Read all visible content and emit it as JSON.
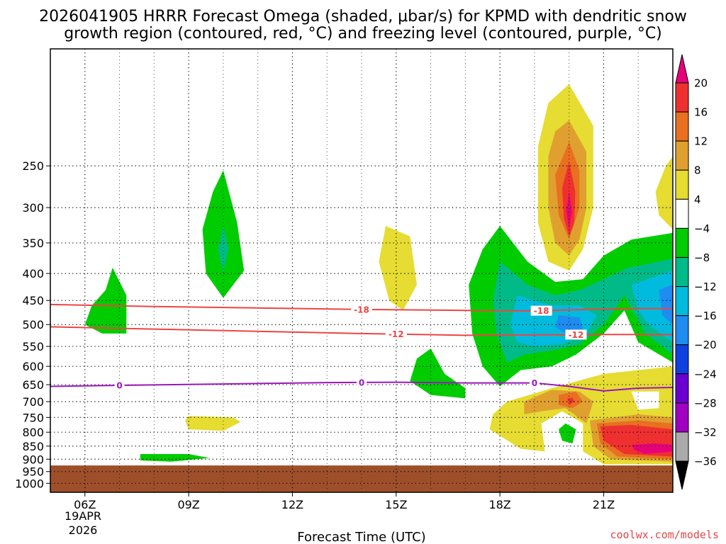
{
  "chart_data": {
    "type": "heatmap",
    "title_line1": "2026041905 HRRR Forecast Omega (shaded, μbar/s) for KPMD with dendritic snow",
    "title_line2": "growth region (contoured, red, °C) and freezing level (contoured, purple, °C)",
    "xlabel": "Forecast Time (UTC)",
    "x_ticks": [
      {
        "hour": 6,
        "label": "06Z"
      },
      {
        "hour": 9,
        "label": "09Z"
      },
      {
        "hour": 12,
        "label": "12Z"
      },
      {
        "hour": 15,
        "label": "15Z"
      },
      {
        "hour": 18,
        "label": "18Z"
      },
      {
        "hour": 21,
        "label": "21Z"
      }
    ],
    "date_label": "19APR",
    "year_label": "2026",
    "x_range_hours": [
      5,
      23
    ],
    "y_ticks": [
      250,
      300,
      350,
      400,
      450,
      500,
      550,
      600,
      650,
      700,
      750,
      800,
      850,
      900,
      950,
      1000
    ],
    "y_range_hpa": [
      150,
      1040
    ],
    "ground_pressure_hpa": 925,
    "ground_color": "#9e4f2a",
    "contours": [
      {
        "name": "-18C",
        "label": "-18",
        "color": "#ee4444",
        "points": [
          [
            5,
            458
          ],
          [
            8,
            462
          ],
          [
            11,
            465
          ],
          [
            14,
            468
          ],
          [
            17,
            470
          ],
          [
            19,
            471
          ],
          [
            20.5,
            468
          ],
          [
            22,
            466
          ],
          [
            23,
            466
          ]
        ],
        "label_hours": [
          14,
          19.2
        ]
      },
      {
        "name": "-12C",
        "label": "-12",
        "color": "#ee4444",
        "points": [
          [
            5,
            505
          ],
          [
            8,
            510
          ],
          [
            11,
            515
          ],
          [
            14,
            520
          ],
          [
            17,
            524
          ],
          [
            19,
            523
          ],
          [
            21,
            522
          ],
          [
            23,
            522
          ]
        ],
        "label_hours": [
          15,
          20.2
        ]
      },
      {
        "name": "0C freezing level",
        "label": "0",
        "color": "#9a16c0",
        "points": [
          [
            5,
            655
          ],
          [
            7,
            652
          ],
          [
            10,
            648
          ],
          [
            13,
            644
          ],
          [
            15,
            643
          ],
          [
            17,
            645
          ],
          [
            19,
            645
          ],
          [
            20,
            655
          ],
          [
            21,
            668
          ],
          [
            22,
            660
          ],
          [
            23,
            658
          ]
        ],
        "label_hours": [
          7,
          14,
          19
        ]
      }
    ],
    "shaded_regions": [
      {
        "color": "#00cc00",
        "label": "-8 to -4",
        "poly": [
          [
            10,
            255
          ],
          [
            10.4,
            320
          ],
          [
            10.6,
            395
          ],
          [
            10,
            445
          ],
          [
            9.5,
            400
          ],
          [
            9.4,
            330
          ],
          [
            9.7,
            280
          ]
        ]
      },
      {
        "color": "#00bb88",
        "label": "-12 to -8",
        "poly": [
          [
            10,
            325
          ],
          [
            10.15,
            360
          ],
          [
            10,
            398
          ],
          [
            9.85,
            360
          ]
        ]
      },
      {
        "color": "#00cc00",
        "label": "-8 to -4",
        "poly": [
          [
            6.8,
            390
          ],
          [
            7.2,
            440
          ],
          [
            7.2,
            520
          ],
          [
            6.5,
            520
          ],
          [
            6,
            500
          ],
          [
            6.2,
            460
          ],
          [
            6.6,
            430
          ]
        ]
      },
      {
        "color": "#00cc00",
        "label": "-8 to -4",
        "poly": [
          [
            16,
            555
          ],
          [
            16.4,
            620
          ],
          [
            17,
            660
          ],
          [
            17,
            690
          ],
          [
            16,
            680
          ],
          [
            15.4,
            640
          ],
          [
            15.6,
            580
          ]
        ]
      },
      {
        "color": "#00cc00",
        "label": "-8 to -4",
        "poly": [
          [
            7.6,
            880
          ],
          [
            9,
            880
          ],
          [
            9.6,
            895
          ],
          [
            8.5,
            910
          ],
          [
            7.6,
            905
          ]
        ]
      },
      {
        "color": "#00cc00",
        "label": "-8 to -4",
        "poly": [
          [
            19.9,
            770
          ],
          [
            20.2,
            790
          ],
          [
            20.1,
            840
          ],
          [
            19.8,
            830
          ],
          [
            19.7,
            790
          ]
        ]
      },
      {
        "color": "#e6dc32",
        "label": "4 to 8",
        "poly": [
          [
            14.7,
            325
          ],
          [
            15.4,
            340
          ],
          [
            15.6,
            420
          ],
          [
            15.2,
            470
          ],
          [
            14.8,
            450
          ],
          [
            14.5,
            380
          ]
        ]
      },
      {
        "color": "#e6dc32",
        "label": "4 to 8",
        "poly": [
          [
            9,
            745
          ],
          [
            10.3,
            750
          ],
          [
            10.5,
            765
          ],
          [
            10,
            795
          ],
          [
            9,
            790
          ],
          [
            8.9,
            760
          ]
        ]
      },
      {
        "color": "#00cc00",
        "label": "-8 to -4",
        "poly": [
          [
            18,
            325
          ],
          [
            18.8,
            380
          ],
          [
            19.6,
            415
          ],
          [
            20.4,
            410
          ],
          [
            21,
            370
          ],
          [
            21.8,
            345
          ],
          [
            23,
            335
          ],
          [
            23,
            590
          ],
          [
            22,
            540
          ],
          [
            21.6,
            470
          ],
          [
            21,
            520
          ],
          [
            20.2,
            570
          ],
          [
            19.5,
            600
          ],
          [
            18.6,
            610
          ],
          [
            18,
            655
          ],
          [
            17.5,
            600
          ],
          [
            17.2,
            520
          ],
          [
            17.1,
            420
          ],
          [
            17.5,
            360
          ]
        ]
      },
      {
        "color": "#00bb88",
        "label": "-12 to -8",
        "poly": [
          [
            18,
            380
          ],
          [
            18.8,
            420
          ],
          [
            19.6,
            440
          ],
          [
            20.3,
            430
          ],
          [
            21,
            410
          ],
          [
            21.7,
            390
          ],
          [
            23,
            375
          ],
          [
            23,
            570
          ],
          [
            22.2,
            520
          ],
          [
            21.6,
            440
          ],
          [
            21,
            500
          ],
          [
            20.3,
            545
          ],
          [
            19.5,
            560
          ],
          [
            18.7,
            570
          ],
          [
            18.2,
            590
          ],
          [
            17.9,
            520
          ],
          [
            17.8,
            450
          ]
        ]
      },
      {
        "color": "#00bbdd",
        "label": "-16 to -12",
        "poly": [
          [
            18.5,
            440
          ],
          [
            19.5,
            460
          ],
          [
            20.3,
            460
          ],
          [
            20.8,
            480
          ],
          [
            20.5,
            520
          ],
          [
            19.8,
            545
          ],
          [
            19,
            550
          ],
          [
            18.5,
            540
          ],
          [
            18.3,
            500
          ]
        ]
      },
      {
        "color": "#00bbdd",
        "label": "-16 to -12",
        "poly": [
          [
            21.8,
            420
          ],
          [
            23,
            395
          ],
          [
            23,
            540
          ],
          [
            22.3,
            500
          ],
          [
            22,
            470
          ]
        ]
      },
      {
        "color": "#1e8cf0",
        "label": "-20 to -16",
        "poly": [
          [
            19.7,
            480
          ],
          [
            20.3,
            485
          ],
          [
            20.4,
            510
          ],
          [
            20,
            525
          ],
          [
            19.6,
            505
          ]
        ]
      },
      {
        "color": "#1e8cf0",
        "label": "-20 to -16",
        "poly": [
          [
            22.6,
            430
          ],
          [
            23,
            420
          ],
          [
            23,
            500
          ],
          [
            22.7,
            480
          ]
        ]
      },
      {
        "color": "#e6dc32",
        "label": "4 to 8",
        "poly": [
          [
            20,
            175
          ],
          [
            20.7,
            210
          ],
          [
            20.7,
            300
          ],
          [
            20.4,
            360
          ],
          [
            20,
            395
          ],
          [
            19.4,
            380
          ],
          [
            19.1,
            320
          ],
          [
            19.1,
            230
          ],
          [
            19.4,
            190
          ]
        ]
      },
      {
        "color": "#e0a030",
        "label": "8 to 12",
        "poly": [
          [
            20,
            205
          ],
          [
            20.5,
            235
          ],
          [
            20.5,
            300
          ],
          [
            20.3,
            345
          ],
          [
            20,
            370
          ],
          [
            19.6,
            350
          ],
          [
            19.4,
            300
          ],
          [
            19.4,
            240
          ],
          [
            19.6,
            215
          ]
        ]
      },
      {
        "color": "#e87020",
        "label": "12 to 16",
        "poly": [
          [
            20,
            225
          ],
          [
            20.3,
            255
          ],
          [
            20.3,
            300
          ],
          [
            20,
            345
          ],
          [
            19.7,
            310
          ],
          [
            19.6,
            260
          ]
        ]
      },
      {
        "color": "#ee3030",
        "label": "16 to 20",
        "poly": [
          [
            20,
            245
          ],
          [
            20.18,
            280
          ],
          [
            20.15,
            320
          ],
          [
            20,
            340
          ],
          [
            19.85,
            315
          ],
          [
            19.8,
            275
          ]
        ]
      },
      {
        "color": "#e8007a",
        "label": "> 20",
        "poly": [
          [
            20,
            280
          ],
          [
            20.08,
            305
          ],
          [
            20,
            330
          ],
          [
            19.92,
            305
          ]
        ]
      },
      {
        "color": "#e6dc32",
        "label": "4 to 8",
        "poly": [
          [
            22.8,
            250
          ],
          [
            23,
            240
          ],
          [
            23,
            330
          ],
          [
            22.6,
            310
          ],
          [
            22.5,
            280
          ]
        ]
      },
      {
        "color": "#e6dc32",
        "label": "4 to 8",
        "poly": [
          [
            18.2,
            700
          ],
          [
            19.5,
            660
          ],
          [
            21,
            620
          ],
          [
            23,
            600
          ],
          [
            23,
            920
          ],
          [
            21,
            920
          ],
          [
            20.4,
            870
          ],
          [
            20.4,
            770
          ],
          [
            19.8,
            730
          ],
          [
            19.2,
            770
          ],
          [
            19.3,
            870
          ],
          [
            18.6,
            860
          ],
          [
            17.7,
            790
          ],
          [
            17.8,
            740
          ]
        ]
      },
      {
        "color": "#e0a030",
        "label": "8 to 12",
        "poly": [
          [
            18.7,
            700
          ],
          [
            19.5,
            665
          ],
          [
            20.3,
            670
          ],
          [
            20.7,
            700
          ],
          [
            20.5,
            770
          ],
          [
            19.9,
            720
          ],
          [
            19.2,
            730
          ],
          [
            18.7,
            740
          ]
        ]
      },
      {
        "color": "#e87020",
        "label": "12 to 16",
        "poly": [
          [
            19.7,
            680
          ],
          [
            20.2,
            670
          ],
          [
            20.4,
            700
          ],
          [
            20.1,
            720
          ],
          [
            19.7,
            710
          ]
        ]
      },
      {
        "color": "#ee3030",
        "label": "16 to 20",
        "poly": [
          [
            19.95,
            690
          ],
          [
            20.1,
            688
          ],
          [
            20.15,
            700
          ],
          [
            20,
            710
          ]
        ]
      },
      {
        "color": "#ffffff",
        "label": "-4 to 4",
        "poly": [
          [
            21.8,
            670
          ],
          [
            22.6,
            670
          ],
          [
            22.6,
            720
          ],
          [
            22,
            725
          ]
        ]
      },
      {
        "color": "#e0a030",
        "label": "8 to 12",
        "poly": [
          [
            20.6,
            760
          ],
          [
            22,
            740
          ],
          [
            23,
            750
          ],
          [
            23,
            910
          ],
          [
            21.2,
            900
          ],
          [
            20.7,
            850
          ]
        ]
      },
      {
        "color": "#e87020",
        "label": "12 to 16",
        "poly": [
          [
            20.8,
            770
          ],
          [
            22,
            760
          ],
          [
            23,
            770
          ],
          [
            23,
            900
          ],
          [
            21.4,
            890
          ],
          [
            20.9,
            840
          ]
        ]
      },
      {
        "color": "#ee3030",
        "label": "16 to 20",
        "poly": [
          [
            20.9,
            780
          ],
          [
            21.8,
            775
          ],
          [
            23,
            790
          ],
          [
            23,
            890
          ],
          [
            21.6,
            880
          ],
          [
            21,
            830
          ]
        ]
      },
      {
        "color": "#e8007a",
        "label": "> 20",
        "poly": [
          [
            21.8,
            845
          ],
          [
            22.5,
            840
          ],
          [
            23,
            845
          ],
          [
            23,
            870
          ],
          [
            22.2,
            880
          ],
          [
            21.9,
            865
          ]
        ]
      }
    ],
    "colorbar": {
      "labels": [
        "20",
        "16",
        "12",
        "8",
        "4",
        "−4",
        "−8",
        "−12",
        "−16",
        "−20",
        "−24",
        "−28",
        "−32",
        "−36"
      ],
      "colors": [
        "#e8007a",
        "#ee3030",
        "#e87020",
        "#e0a030",
        "#e6dc32",
        "#ffffff",
        "#00cc00",
        "#00bb88",
        "#00bbdd",
        "#1e8cf0",
        "#1040e0",
        "#6a00d0",
        "#a000c0",
        "#aaaaaa",
        "#000000"
      ]
    }
  },
  "credit": "coolwx.com/models"
}
